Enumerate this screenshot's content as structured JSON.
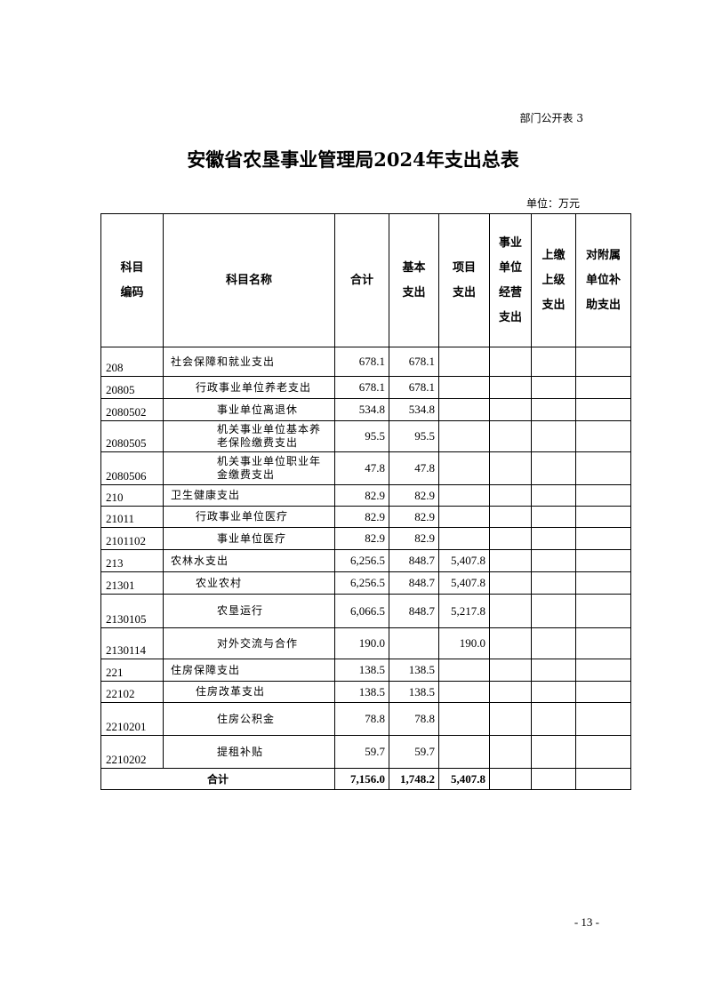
{
  "tag": "部门公开表 3",
  "title": "安徽省农垦事业管理局2024年支出总表",
  "unit": "单位：万元",
  "headers": {
    "code": "科目\n编码",
    "name": "科目名称",
    "total": "合计",
    "basic": "基本\n支出",
    "project": "项目\n支出",
    "business": "事业\n单位\n经营\n支出",
    "upper": "上缴\n上级\n支出",
    "subsidy": "对附属\n单位补\n助支出"
  },
  "rows": [
    {
      "code": "208",
      "name": "社会保障和就业支出",
      "level": 1,
      "total": "678.1",
      "basic": "678.1",
      "project": ""
    },
    {
      "code": "20805",
      "name": "行政事业单位养老支出",
      "level": 2,
      "total": "678.1",
      "basic": "678.1",
      "project": ""
    },
    {
      "code": "2080502",
      "name": "事业单位离退休",
      "level": 3,
      "total": "534.8",
      "basic": "534.8",
      "project": ""
    },
    {
      "code": "2080505",
      "name": "机关事业单位基本养老保险缴费支出",
      "level": 3,
      "total": "95.5",
      "basic": "95.5",
      "project": ""
    },
    {
      "code": "2080506",
      "name": "机关事业单位职业年金缴费支出",
      "level": 3,
      "total": "47.8",
      "basic": "47.8",
      "project": ""
    },
    {
      "code": "210",
      "name": "卫生健康支出",
      "level": 1,
      "total": "82.9",
      "basic": "82.9",
      "project": ""
    },
    {
      "code": "21011",
      "name": "行政事业单位医疗",
      "level": 2,
      "total": "82.9",
      "basic": "82.9",
      "project": ""
    },
    {
      "code": "2101102",
      "name": "事业单位医疗",
      "level": 3,
      "total": "82.9",
      "basic": "82.9",
      "project": ""
    },
    {
      "code": "213",
      "name": "农林水支出",
      "level": 1,
      "total": "6,256.5",
      "basic": "848.7",
      "project": "5,407.8"
    },
    {
      "code": "21301",
      "name": "农业农村",
      "level": 2,
      "total": "6,256.5",
      "basic": "848.7",
      "project": "5,407.8"
    },
    {
      "code": "2130105",
      "name": "农垦运行",
      "level": 3,
      "total": "6,066.5",
      "basic": "848.7",
      "project": "5,217.8"
    },
    {
      "code": "2130114",
      "name": "对外交流与合作",
      "level": 3,
      "total": "190.0",
      "basic": "",
      "project": "190.0"
    },
    {
      "code": "221",
      "name": "住房保障支出",
      "level": 1,
      "total": "138.5",
      "basic": "138.5",
      "project": ""
    },
    {
      "code": "22102",
      "name": "住房改革支出",
      "level": 2,
      "total": "138.5",
      "basic": "138.5",
      "project": ""
    },
    {
      "code": "2210201",
      "name": "住房公积金",
      "level": 3,
      "total": "78.8",
      "basic": "78.8",
      "project": ""
    },
    {
      "code": "2210202",
      "name": "提租补贴",
      "level": 3,
      "total": "59.7",
      "basic": "59.7",
      "project": ""
    }
  ],
  "total_row": {
    "label": "合计",
    "total": "7,156.0",
    "basic": "1,748.2",
    "project": "5,407.8"
  },
  "page_number": "- 13 -"
}
